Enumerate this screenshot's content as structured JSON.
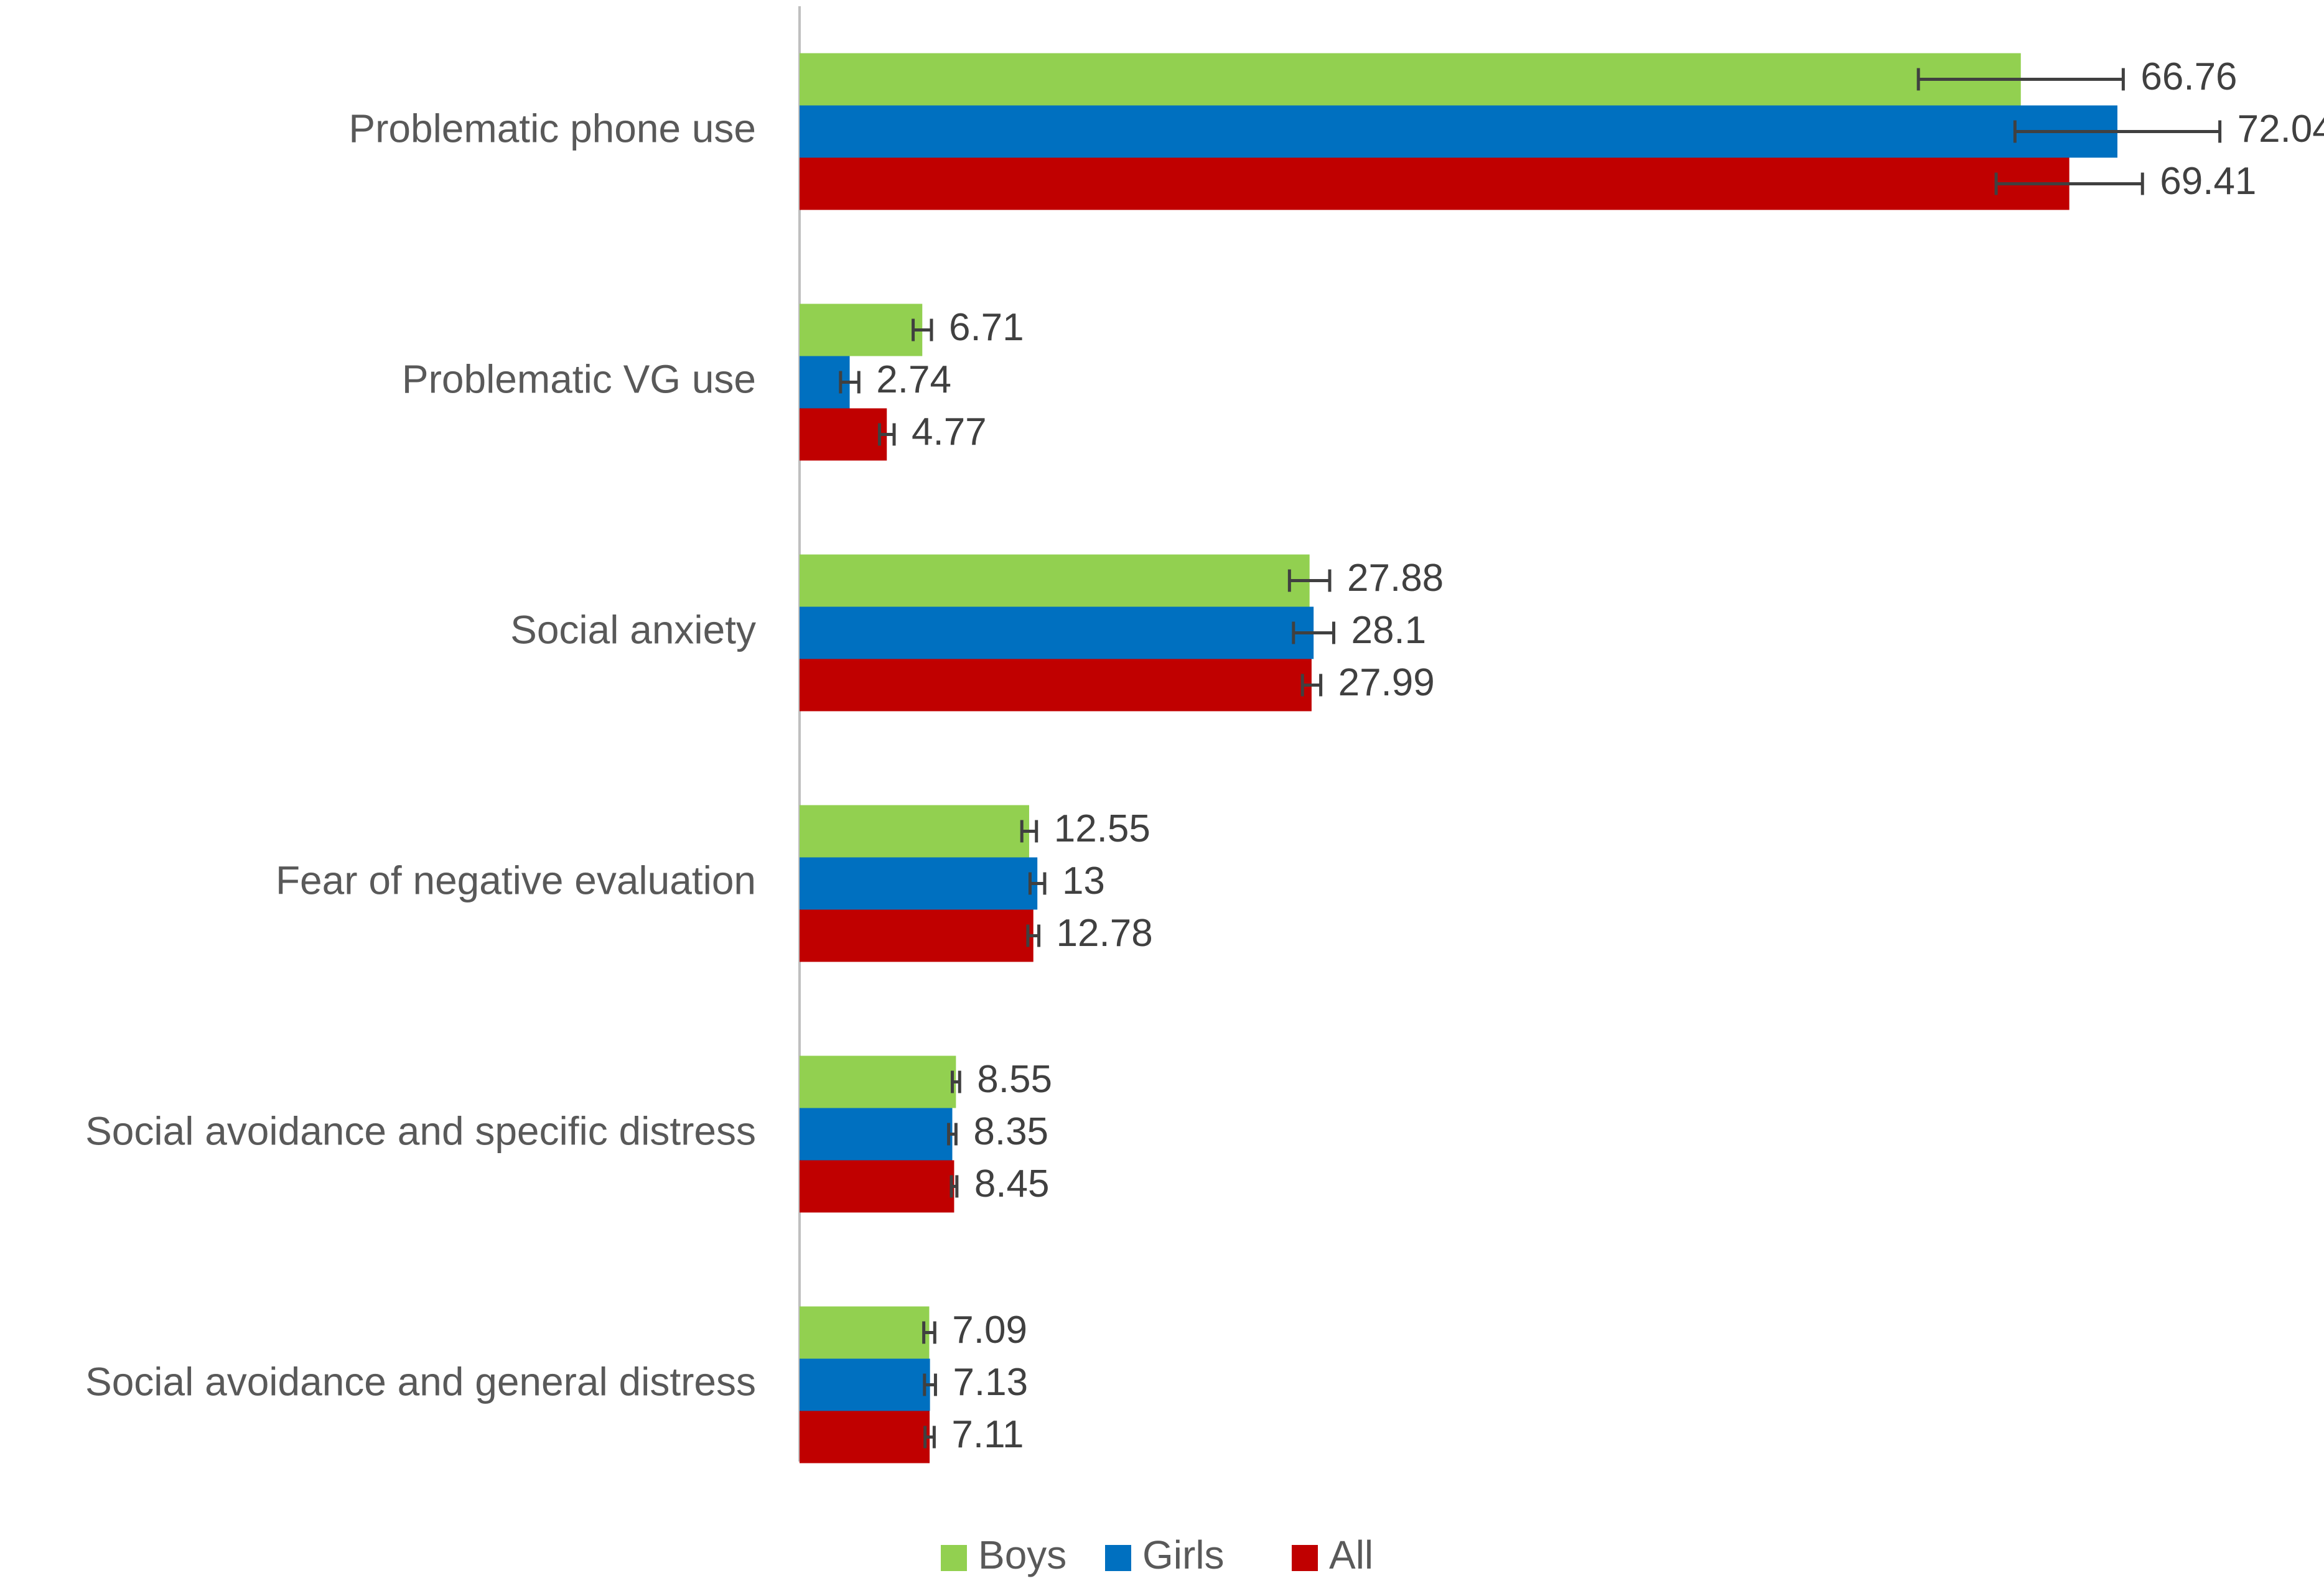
{
  "chart_data": {
    "type": "bar",
    "orientation": "horizontal",
    "title": "",
    "xlabel": "",
    "ylabel": "",
    "xlim": [
      0,
      75
    ],
    "grid": false,
    "legend_position": "bottom",
    "categories": [
      "Problematic phone use",
      "Problematic VG use",
      "Social anxiety",
      "Fear of negative evaluation",
      "Social avoidance and specific distress",
      "Social avoidance and general distress"
    ],
    "series": [
      {
        "name": "Boys",
        "color": "#92D050",
        "values": [
          66.76,
          6.71,
          27.88,
          12.55,
          8.55,
          7.09
        ],
        "errors": [
          5.6,
          0.5,
          1.1,
          0.4,
          0.2,
          0.3
        ]
      },
      {
        "name": "Girls",
        "color": "#0070C0",
        "values": [
          72.04,
          2.74,
          28.1,
          13,
          8.35,
          7.13
        ],
        "errors": [
          5.6,
          0.5,
          1.1,
          0.4,
          0.2,
          0.3
        ]
      },
      {
        "name": "All",
        "color": "#C00000",
        "values": [
          69.41,
          4.77,
          27.99,
          12.78,
          8.45,
          7.11
        ],
        "errors": [
          4.0,
          0.4,
          0.5,
          0.3,
          0.15,
          0.25
        ]
      }
    ]
  }
}
